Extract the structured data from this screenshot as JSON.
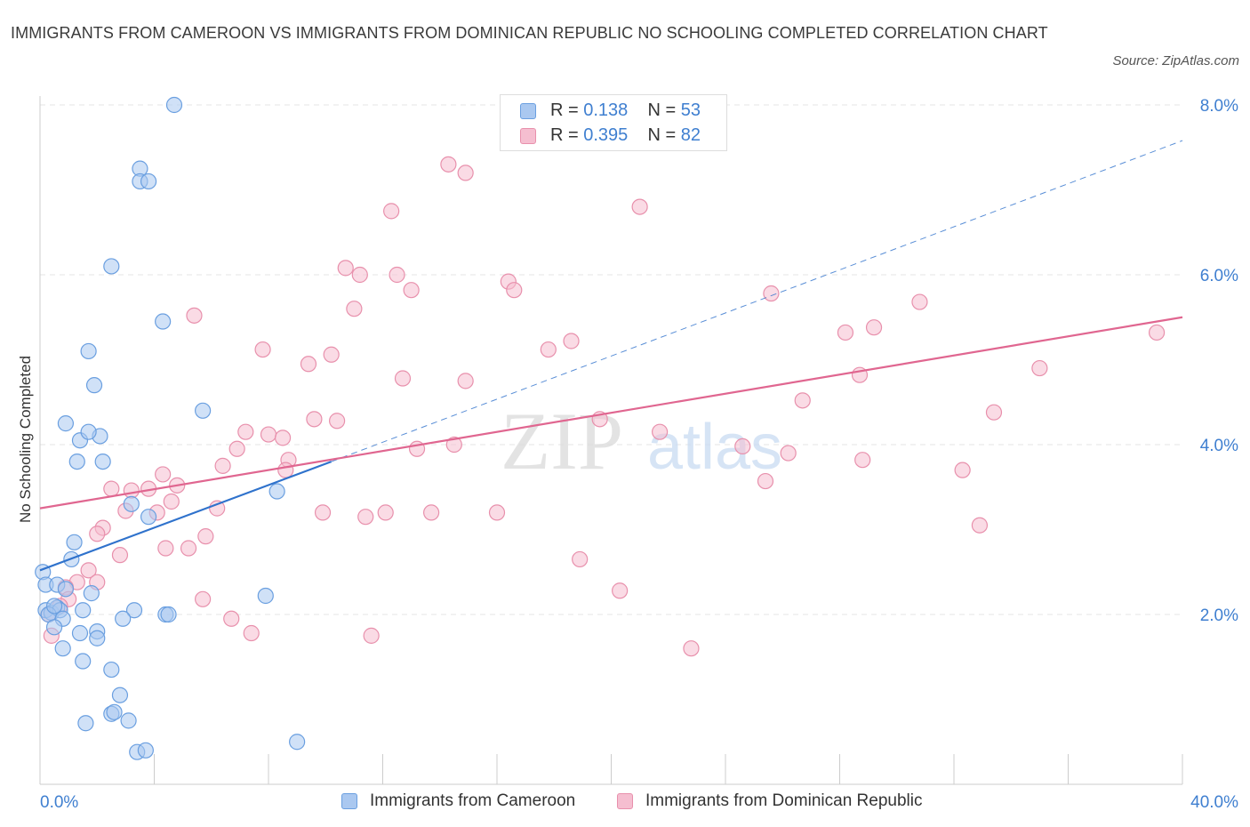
{
  "title": "IMMIGRANTS FROM CAMEROON VS IMMIGRANTS FROM DOMINICAN REPUBLIC NO SCHOOLING COMPLETED CORRELATION CHART",
  "source": "Source: ZipAtlas.com",
  "watermark": {
    "zip": "ZIP",
    "atlas": "atlas"
  },
  "colors": {
    "cameroon_fill": "#aac8f0",
    "cameroon_stroke": "#6a9fe0",
    "cameroon_line": "#2f72cc",
    "dominican_fill": "#f5bed0",
    "dominican_stroke": "#e890ac",
    "dominican_line": "#e06690",
    "axis_label": "#3f7fd0",
    "grid": "#e6e6e6"
  },
  "legend": {
    "rows": [
      {
        "r_label": "R = ",
        "r_value": "0.138",
        "n_label": "N = ",
        "n_value": "53"
      },
      {
        "r_label": "R = ",
        "r_value": "0.395",
        "n_label": "N = ",
        "n_value": "82"
      }
    ]
  },
  "chart_data": {
    "type": "scatter",
    "ylabel": "No Schooling Completed",
    "xlabel": "",
    "x_tick_labels": [
      "0.0%",
      "40.0%"
    ],
    "y_tick_labels": [
      "2.0%",
      "4.0%",
      "6.0%",
      "8.0%"
    ],
    "y_ticks": [
      2,
      4,
      6,
      8
    ],
    "xlim": [
      0,
      40
    ],
    "ylim": [
      0,
      8
    ],
    "grid": true,
    "legend_position": "top-center",
    "series": [
      {
        "name": "Immigrants from Cameroon",
        "points": [
          [
            4.7,
            8.0
          ],
          [
            3.5,
            7.25
          ],
          [
            3.5,
            7.1
          ],
          [
            3.8,
            7.1
          ],
          [
            2.5,
            6.1
          ],
          [
            4.3,
            5.45
          ],
          [
            1.7,
            5.1
          ],
          [
            1.9,
            4.7
          ],
          [
            5.7,
            4.4
          ],
          [
            0.9,
            4.25
          ],
          [
            1.4,
            4.05
          ],
          [
            2.1,
            4.1
          ],
          [
            1.7,
            4.15
          ],
          [
            1.3,
            3.8
          ],
          [
            2.2,
            3.8
          ],
          [
            8.3,
            3.45
          ],
          [
            3.2,
            3.3
          ],
          [
            3.8,
            3.15
          ],
          [
            1.2,
            2.85
          ],
          [
            1.1,
            2.65
          ],
          [
            0.1,
            2.5
          ],
          [
            0.2,
            2.35
          ],
          [
            0.6,
            2.35
          ],
          [
            0.9,
            2.3
          ],
          [
            1.8,
            2.25
          ],
          [
            7.9,
            2.22
          ],
          [
            0.2,
            2.05
          ],
          [
            0.4,
            2.02
          ],
          [
            0.6,
            2.08
          ],
          [
            0.7,
            2.05
          ],
          [
            1.5,
            2.05
          ],
          [
            0.3,
            2.0
          ],
          [
            0.8,
            1.95
          ],
          [
            3.3,
            2.05
          ],
          [
            4.4,
            2.0
          ],
          [
            4.5,
            2.0
          ],
          [
            2.9,
            1.95
          ],
          [
            0.5,
            1.85
          ],
          [
            1.4,
            1.78
          ],
          [
            2.0,
            1.8
          ],
          [
            2.0,
            1.72
          ],
          [
            0.8,
            1.6
          ],
          [
            1.5,
            1.45
          ],
          [
            2.5,
            1.35
          ],
          [
            2.8,
            1.05
          ],
          [
            2.5,
            0.83
          ],
          [
            2.6,
            0.85
          ],
          [
            3.1,
            0.75
          ],
          [
            1.6,
            0.72
          ],
          [
            9.0,
            0.5
          ],
          [
            3.4,
            0.38
          ],
          [
            3.7,
            0.4
          ],
          [
            0.5,
            2.1
          ]
        ]
      },
      {
        "name": "Immigrants from Dominican Republic",
        "points": [
          [
            14.3,
            7.3
          ],
          [
            14.9,
            7.2
          ],
          [
            21.0,
            6.8
          ],
          [
            12.3,
            6.75
          ],
          [
            10.7,
            6.08
          ],
          [
            11.2,
            6.0
          ],
          [
            12.5,
            6.0
          ],
          [
            13.0,
            5.82
          ],
          [
            16.4,
            5.92
          ],
          [
            16.6,
            5.82
          ],
          [
            25.6,
            5.78
          ],
          [
            30.8,
            5.68
          ],
          [
            5.4,
            5.52
          ],
          [
            11.0,
            5.6
          ],
          [
            29.2,
            5.38
          ],
          [
            28.2,
            5.32
          ],
          [
            39.1,
            5.32
          ],
          [
            18.6,
            5.22
          ],
          [
            17.8,
            5.12
          ],
          [
            7.8,
            5.12
          ],
          [
            10.2,
            5.06
          ],
          [
            9.4,
            4.95
          ],
          [
            35.0,
            4.9
          ],
          [
            12.7,
            4.78
          ],
          [
            14.9,
            4.75
          ],
          [
            28.7,
            4.82
          ],
          [
            26.7,
            4.52
          ],
          [
            33.4,
            4.38
          ],
          [
            9.6,
            4.3
          ],
          [
            10.4,
            4.28
          ],
          [
            19.6,
            4.3
          ],
          [
            7.2,
            4.15
          ],
          [
            8.0,
            4.12
          ],
          [
            8.5,
            4.08
          ],
          [
            21.7,
            4.15
          ],
          [
            14.5,
            4.0
          ],
          [
            6.9,
            3.95
          ],
          [
            13.2,
            3.95
          ],
          [
            24.6,
            3.98
          ],
          [
            26.2,
            3.9
          ],
          [
            6.4,
            3.75
          ],
          [
            8.7,
            3.82
          ],
          [
            8.6,
            3.7
          ],
          [
            4.3,
            3.65
          ],
          [
            28.8,
            3.82
          ],
          [
            32.3,
            3.7
          ],
          [
            25.4,
            3.57
          ],
          [
            4.8,
            3.52
          ],
          [
            2.5,
            3.48
          ],
          [
            3.2,
            3.46
          ],
          [
            3.8,
            3.48
          ],
          [
            4.6,
            3.33
          ],
          [
            3.0,
            3.22
          ],
          [
            4.1,
            3.2
          ],
          [
            6.2,
            3.25
          ],
          [
            9.9,
            3.2
          ],
          [
            11.4,
            3.15
          ],
          [
            12.1,
            3.2
          ],
          [
            13.7,
            3.2
          ],
          [
            16.0,
            3.2
          ],
          [
            2.2,
            3.02
          ],
          [
            2.0,
            2.95
          ],
          [
            5.8,
            2.92
          ],
          [
            32.9,
            3.05
          ],
          [
            4.4,
            2.78
          ],
          [
            5.2,
            2.78
          ],
          [
            2.8,
            2.7
          ],
          [
            18.9,
            2.65
          ],
          [
            1.7,
            2.52
          ],
          [
            1.3,
            2.38
          ],
          [
            2.0,
            2.38
          ],
          [
            0.9,
            2.32
          ],
          [
            20.3,
            2.28
          ],
          [
            5.7,
            2.18
          ],
          [
            1.0,
            2.18
          ],
          [
            0.7,
            2.1
          ],
          [
            6.7,
            1.95
          ],
          [
            7.4,
            1.78
          ],
          [
            11.6,
            1.75
          ],
          [
            22.8,
            1.6
          ],
          [
            0.4,
            1.75
          ],
          [
            0.3,
            2.0
          ]
        ]
      }
    ],
    "trend_lines": [
      {
        "series": "Immigrants from Cameroon",
        "solid": {
          "x": [
            0,
            10.2
          ],
          "y": [
            2.52,
            3.8
          ]
        },
        "dashed": {
          "x": [
            10.2,
            40
          ],
          "y": [
            3.8,
            7.58
          ]
        }
      },
      {
        "series": "Immigrants from Dominican Republic",
        "solid": {
          "x": [
            0,
            40
          ],
          "y": [
            3.25,
            5.5
          ]
        }
      }
    ]
  }
}
